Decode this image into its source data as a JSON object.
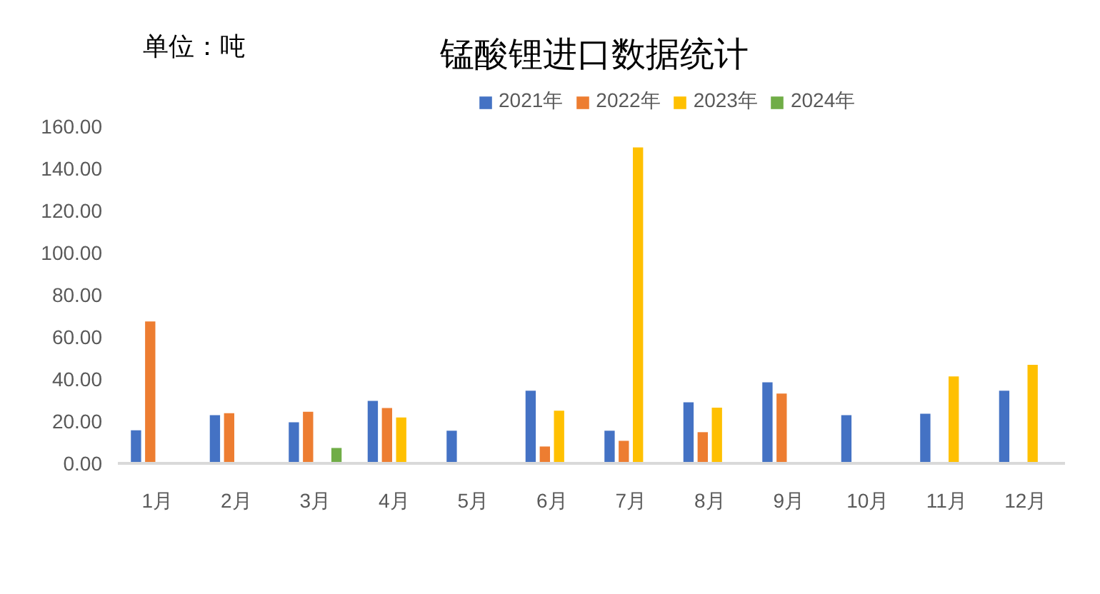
{
  "chart_data": {
    "type": "bar",
    "title": "锰酸锂进口数据统计",
    "annotations": [
      "单位：吨"
    ],
    "categories": [
      "1月",
      "2月",
      "3月",
      "4月",
      "5月",
      "6月",
      "7月",
      "8月",
      "9月",
      "10月",
      "11月",
      "12月"
    ],
    "series": [
      {
        "name": "2021年",
        "color": "#4472c4",
        "values": [
          15.7,
          22.9,
          19.5,
          29.7,
          15.5,
          34.5,
          15.5,
          29.0,
          38.5,
          22.9,
          23.6,
          34.5
        ]
      },
      {
        "name": "2022年",
        "color": "#ed7d31",
        "values": [
          67.4,
          23.8,
          24.5,
          26.3,
          null,
          8.0,
          10.7,
          14.8,
          33.1,
          null,
          null,
          null
        ]
      },
      {
        "name": "2023年",
        "color": "#ffc000",
        "values": [
          null,
          null,
          null,
          21.8,
          null,
          25.0,
          150.0,
          26.4,
          null,
          null,
          41.3,
          46.8
        ]
      },
      {
        "name": "2024年",
        "color": "#70ad47",
        "values": [
          null,
          null,
          7.3,
          null,
          null,
          null,
          null,
          null,
          null,
          null,
          null,
          null
        ]
      }
    ],
    "ylim": [
      0,
      160
    ],
    "yticks": [
      {
        "value": 0,
        "label": "0.00"
      },
      {
        "value": 20,
        "label": "20.00"
      },
      {
        "value": 40,
        "label": "40.00"
      },
      {
        "value": 60,
        "label": "60.00"
      },
      {
        "value": 80,
        "label": "80.00"
      },
      {
        "value": 100,
        "label": "100.00"
      },
      {
        "value": 120,
        "label": "120.00"
      },
      {
        "value": 140,
        "label": "140.00"
      },
      {
        "value": 160,
        "label": "160.00"
      }
    ],
    "grid": false,
    "legend": "top"
  }
}
